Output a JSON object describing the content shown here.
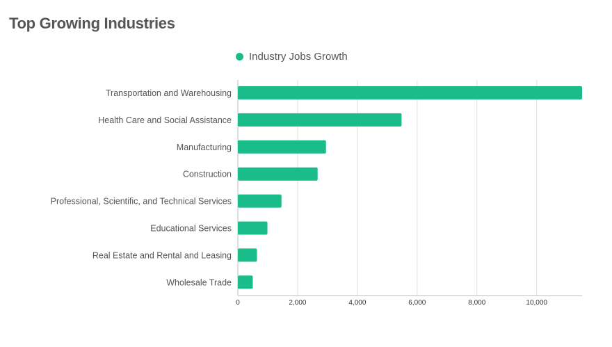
{
  "title": "Top Growing Industries",
  "legend": {
    "label": "Industry Jobs Growth",
    "color": "#1abc8a"
  },
  "chart_data": {
    "type": "bar",
    "orientation": "horizontal",
    "categories": [
      "Transportation and Warehousing",
      "Health Care and Social Assistance",
      "Manufacturing",
      "Construction",
      "Professional, Scientific, and Technical Services",
      "Educational Services",
      "Real Estate and Rental and Leasing",
      "Wholesale Trade"
    ],
    "series": [
      {
        "name": "Industry Jobs Growth",
        "values": [
          11520,
          5480,
          2950,
          2670,
          1460,
          990,
          640,
          500
        ]
      }
    ],
    "xlim": [
      0,
      11520
    ],
    "xticks": [
      0,
      2000,
      4000,
      6000,
      8000,
      10000
    ],
    "xtick_labels": [
      "0",
      "2,000",
      "4,000",
      "6,000",
      "8,000",
      "10,000"
    ],
    "grid": "vertical",
    "legend_position": "top-center",
    "bar_color": "#1abc8a"
  }
}
